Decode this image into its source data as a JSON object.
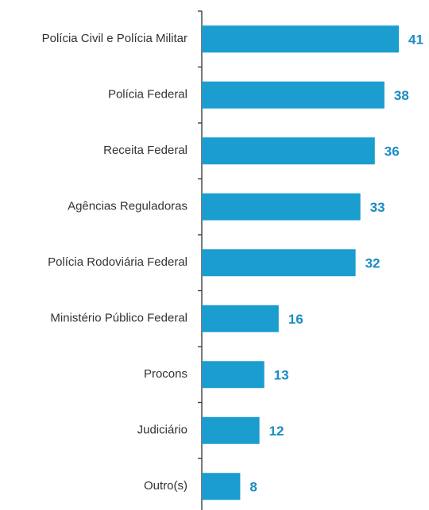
{
  "chart_data": {
    "type": "bar",
    "orientation": "horizontal",
    "categories": [
      "Polícia Civil e Polícia Militar",
      "Polícia Federal",
      "Receita Federal",
      "Agências Reguladoras",
      "Polícia Rodoviária Federal",
      "Ministério Público Federal",
      "Procons",
      "Judiciário",
      "Outro(s)"
    ],
    "values": [
      41,
      38,
      36,
      33,
      32,
      16,
      13,
      12,
      8
    ],
    "color": "#1b9dd0",
    "label_color": "#1a8cc2"
  }
}
